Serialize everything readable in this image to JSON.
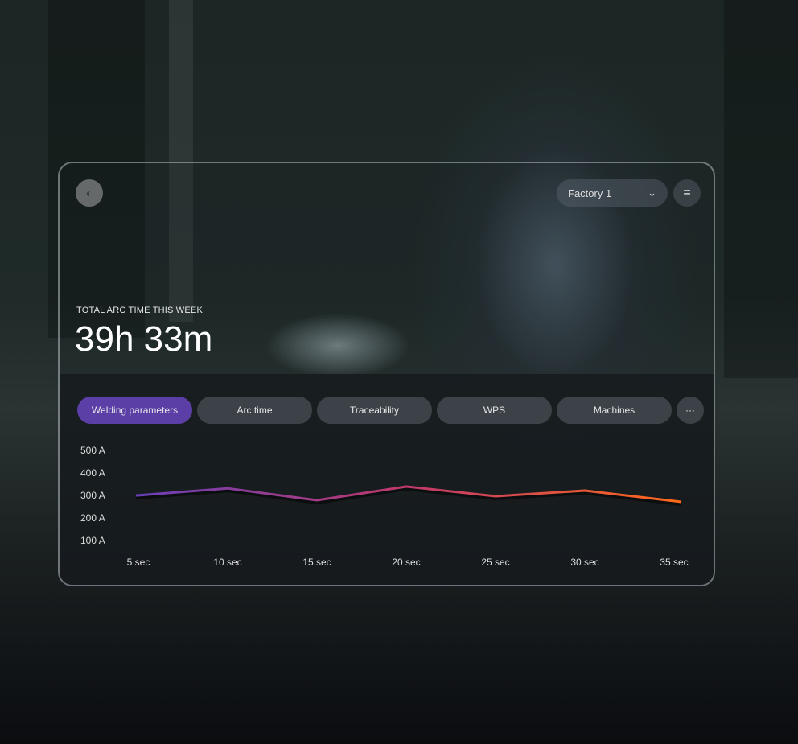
{
  "header": {
    "factory_select": "Factory 1",
    "menu_icon": "menu-icon",
    "logo_icon": "logo-icon"
  },
  "kpi": {
    "label": "TOTAL ARC TIME THIS WEEK",
    "value": "39h 33m"
  },
  "tabs": [
    {
      "label": "Welding parameters",
      "active": true
    },
    {
      "label": "Arc time"
    },
    {
      "label": "Traceability"
    },
    {
      "label": "WPS"
    },
    {
      "label": "Machines"
    }
  ],
  "more_label": "···",
  "colors": {
    "accent": "#5b3fa6",
    "line_start": "#6a3fb8",
    "line_mid": "#c0396a",
    "line_end": "#ff6a1a"
  },
  "chart_data": {
    "type": "line",
    "y_ticks": [
      "500 A",
      "400 A",
      "300 A",
      "200 A",
      "100 A"
    ],
    "y_tick_values": [
      500,
      400,
      300,
      200,
      100
    ],
    "categories": [
      "5 sec",
      "10 sec",
      "15 sec",
      "20 sec",
      "25 sec",
      "30 sec",
      "35 sec"
    ],
    "values": [
      303,
      335,
      282,
      343,
      300,
      325,
      275
    ],
    "ylim": [
      100,
      500
    ],
    "grid": false
  }
}
